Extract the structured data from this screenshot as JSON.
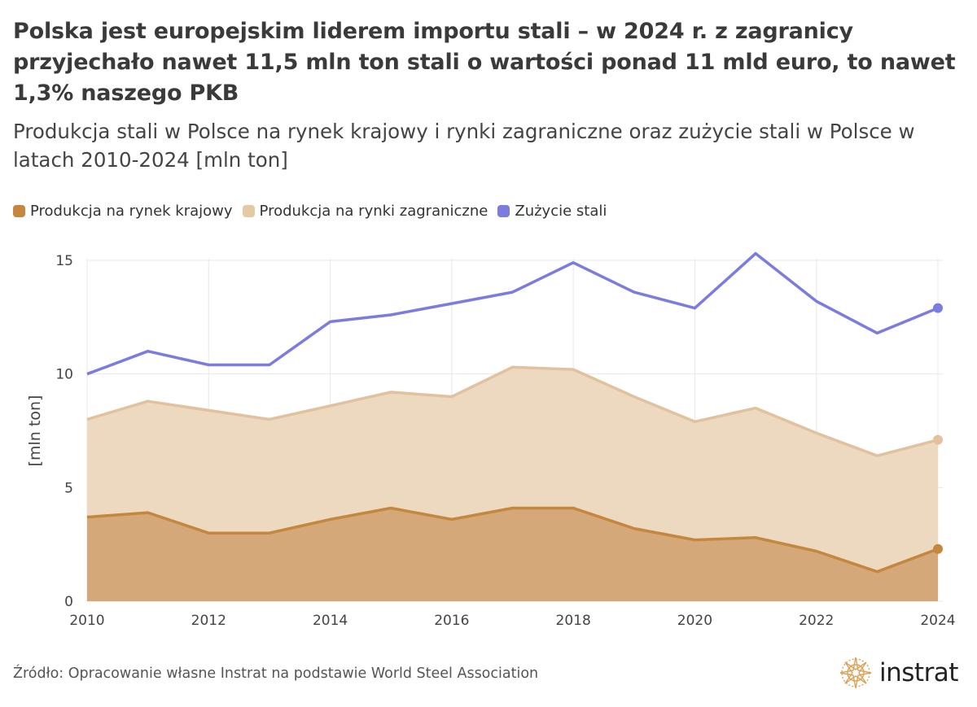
{
  "title": "Polska jest europejskim liderem importu stali – w 2024 r. z zagranicy przyjechało nawet 11,5 mln ton stali o wartości ponad 11 mld euro, to nawet 1,3% naszego PKB",
  "subtitle": "Produkcja stali w Polsce na rynek krajowy i rynki zagraniczne oraz zużycie stali w Polsce w latach 2010-2024 [mln ton]",
  "legend": [
    {
      "label": "Produkcja na rynek krajowy",
      "color": "#c4873d"
    },
    {
      "label": "Produkcja na rynki zagraniczne",
      "color": "#e5c9a3"
    },
    {
      "label": "Zużycie stali",
      "color": "#7b7be0"
    }
  ],
  "footer": "Źródło: Opracowanie własne Instrat na podstawie World Steel Association",
  "logo": {
    "text": "instrat",
    "icon": "instrat-compass-logo-icon"
  },
  "chart_data": {
    "type": "area",
    "x": [
      2010,
      2011,
      2012,
      2013,
      2014,
      2015,
      2016,
      2017,
      2018,
      2019,
      2020,
      2021,
      2022,
      2023,
      2024
    ],
    "xticks": [
      "2010",
      "2012",
      "2014",
      "2016",
      "2018",
      "2020",
      "2022",
      "2024"
    ],
    "yticks": [
      "0",
      "5",
      "10",
      "15"
    ],
    "ylabel": "[mln ton]",
    "ylim": [
      0,
      15.5
    ],
    "xlim": [
      2010,
      2024
    ],
    "stacked": true,
    "grid": true,
    "series": [
      {
        "name": "Produkcja na rynek krajowy",
        "kind": "area",
        "color": "#c4873d",
        "fill": "#d4a878",
        "values": [
          3.7,
          3.9,
          3.0,
          3.0,
          3.6,
          4.1,
          3.6,
          4.1,
          4.1,
          3.2,
          2.7,
          2.8,
          2.2,
          1.3,
          2.3
        ]
      },
      {
        "name": "Produkcja na rynki zagraniczne",
        "kind": "area",
        "color": "#e2c29e",
        "fill": "#ecd9c0",
        "values": [
          4.3,
          4.9,
          5.4,
          5.0,
          5.0,
          5.1,
          5.4,
          6.2,
          6.1,
          5.8,
          5.2,
          5.7,
          5.2,
          5.1,
          4.8
        ]
      },
      {
        "name": "Zużycie stali",
        "kind": "line",
        "color": "#7b7be0",
        "values": [
          10.0,
          11.0,
          10.4,
          10.4,
          12.3,
          12.6,
          13.1,
          13.6,
          14.9,
          13.6,
          12.9,
          15.3,
          13.2,
          11.8,
          12.9
        ]
      }
    ]
  }
}
